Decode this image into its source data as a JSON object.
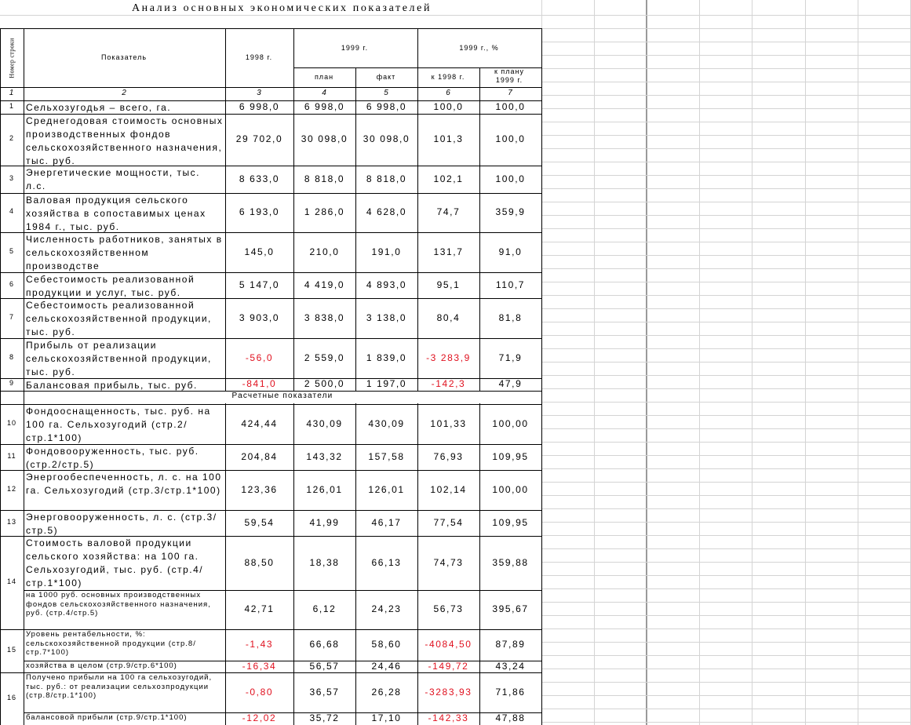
{
  "title": "Анализ основных экономических показателей",
  "headers": {
    "row_no": "Номер строки",
    "indicator": "Показатель",
    "y1998": "1998 г.",
    "y1999": "1999 г.",
    "y1999_pct": "1999 г., %",
    "plan": "план",
    "fact": "факт",
    "to_1998": "к 1998 г.",
    "to_plan": "к плану 1999 г.",
    "col_numbers": [
      "1",
      "2",
      "3",
      "4",
      "5",
      "6",
      "7"
    ]
  },
  "section_label": "Расчетные показатели",
  "rows": [
    {
      "no": "1",
      "name": "Сельхозугодья – всего, га.",
      "v1998": "6 998,0",
      "plan": "6 998,0",
      "fact": "6 998,0",
      "to1998": "100,0",
      "toplan": "100,0"
    },
    {
      "no": "2",
      "name": "Среднегодовая стоимость основных производственных фондов сельскохозяйственного назначения, тыс. руб.",
      "v1998": "29 702,0",
      "plan": "30 098,0",
      "fact": "30 098,0",
      "to1998": "101,3",
      "toplan": "100,0"
    },
    {
      "no": "3",
      "name": "Энергетические мощности, тыс. л.с.",
      "v1998": "8 633,0",
      "plan": "8 818,0",
      "fact": "8 818,0",
      "to1998": "102,1",
      "toplan": "100,0"
    },
    {
      "no": "4",
      "name": "Валовая продукция сельского хозяйства в сопоставимых ценах 1984 г., тыс. руб.",
      "v1998": "6 193,0",
      "plan": "1 286,0",
      "fact": "4 628,0",
      "to1998": "74,7",
      "toplan": "359,9"
    },
    {
      "no": "5",
      "name": "Численность работников, занятых в сельскохозяйственном производстве",
      "v1998": "145,0",
      "plan": "210,0",
      "fact": "191,0",
      "to1998": "131,7",
      "toplan": "91,0"
    },
    {
      "no": "6",
      "name": "Себестоимость реализованной продукции и услуг, тыс. руб.",
      "v1998": "5 147,0",
      "plan": "4 419,0",
      "fact": "4 893,0",
      "to1998": "95,1",
      "toplan": "110,7"
    },
    {
      "no": "7",
      "name": "Себестоимость реализованной сельскохозяйственной продукции, тыс. руб.",
      "v1998": "3 903,0",
      "plan": "3 838,0",
      "fact": "3 138,0",
      "to1998": "80,4",
      "toplan": "81,8"
    },
    {
      "no": "8",
      "name": "Прибыль от реализации сельскохозяйственной продукции, тыс. руб.",
      "v1998": "-56,0",
      "plan": "2 559,0",
      "fact": "1 839,0",
      "to1998": "-3 283,9",
      "toplan": "71,9"
    },
    {
      "no": "9",
      "name": "Балансовая прибыль, тыс. руб.",
      "v1998": "-841,0",
      "plan": "2 500,0",
      "fact": "1 197,0",
      "to1998": "-142,3",
      "toplan": "47,9"
    },
    {
      "no": "10",
      "name": "Фондооснащенность, тыс. руб. на 100 га. Сельхозугодий (стр.2/стр.1*100)",
      "v1998": "424,44",
      "plan": "430,09",
      "fact": "430,09",
      "to1998": "101,33",
      "toplan": "100,00"
    },
    {
      "no": "11",
      "name": "Фондовооруженность, тыс. руб. (стр.2/стр.5)",
      "v1998": "204,84",
      "plan": "143,32",
      "fact": "157,58",
      "to1998": "76,93",
      "toplan": "109,95"
    },
    {
      "no": "12",
      "name": "Энергообеспеченность, л. с. на 100 га. Сельхозугодий (стр.3/стр.1*100)",
      "v1998": "123,36",
      "plan": "126,01",
      "fact": "126,01",
      "to1998": "102,14",
      "toplan": "100,00"
    },
    {
      "no": "13",
      "name": "Энерговооруженность, л. с. (стр.3/стр.5)",
      "v1998": "59,54",
      "plan": "41,99",
      "fact": "46,17",
      "to1998": "77,54",
      "toplan": "109,95"
    },
    {
      "no": "14",
      "name": "Стоимость валовой продукции сельского хозяйства: на 100 га. Сельхозугодий, тыс. руб. (стр.4/стр.1*100)",
      "v1998": "88,50",
      "plan": "18,38",
      "fact": "66,13",
      "to1998": "74,73",
      "toplan": "359,88"
    },
    {
      "no": "",
      "name": "на 1000 руб. основных производственных фондов сельскохозяйственного назначения, руб. (стр.4/стр.5)",
      "v1998": "42,71",
      "plan": "6,12",
      "fact": "24,23",
      "to1998": "56,73",
      "toplan": "395,67"
    },
    {
      "no": "15",
      "name": "Уровень рентабельности, %: сельскохозяйственной продукции (стр.8/стр.7*100)",
      "v1998": "-1,43",
      "plan": "66,68",
      "fact": "58,60",
      "to1998": "-4084,50",
      "toplan": "87,89"
    },
    {
      "no": "",
      "name": "хозяйства в целом (стр.9/стр.6*100)",
      "v1998": "-16,34",
      "plan": "56,57",
      "fact": "24,46",
      "to1998": "-149,72",
      "toplan": "43,24"
    },
    {
      "no": "16",
      "name": "Получено прибыли на 100 га сельхозугодий, тыс. руб.: от реализации сельхозпродукции (стр.8/стр.1*100)",
      "v1998": "-0,80",
      "plan": "36,57",
      "fact": "26,28",
      "to1998": "-3283,93",
      "toplan": "71,86"
    },
    {
      "no": "",
      "name": "балансовой прибыли (стр.9/стр.1*100)",
      "v1998": "-12,02",
      "plan": "35,72",
      "fact": "17,10",
      "to1998": "-142,33",
      "toplan": "47,88"
    }
  ],
  "colors": {
    "negative": "#e0101e",
    "grid": "#d4d4d4",
    "border": "#000000"
  }
}
